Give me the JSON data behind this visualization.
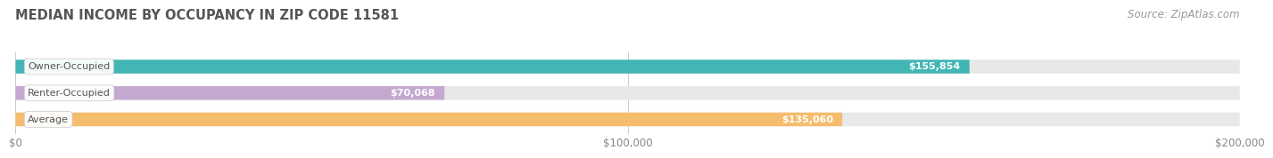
{
  "title": "MEDIAN INCOME BY OCCUPANCY IN ZIP CODE 11581",
  "source": "Source: ZipAtlas.com",
  "categories": [
    "Owner-Occupied",
    "Renter-Occupied",
    "Average"
  ],
  "values": [
    155854,
    70068,
    135060
  ],
  "bar_colors": [
    "#42B5B5",
    "#C4A8D0",
    "#F5BC6E"
  ],
  "bar_bg_color": "#E8E8E8",
  "xlim": [
    0,
    200000
  ],
  "xtick_labels": [
    "$0",
    "$100,000",
    "$200,000"
  ],
  "xtick_vals": [
    0,
    100000,
    200000
  ],
  "title_fontsize": 10.5,
  "source_fontsize": 8.5,
  "bar_height": 0.52,
  "value_label_color": "#FFFFFF",
  "category_label_color": "#555555",
  "tick_label_color": "#888888",
  "background_color": "#FFFFFF",
  "fig_width": 14.06,
  "fig_height": 1.96
}
